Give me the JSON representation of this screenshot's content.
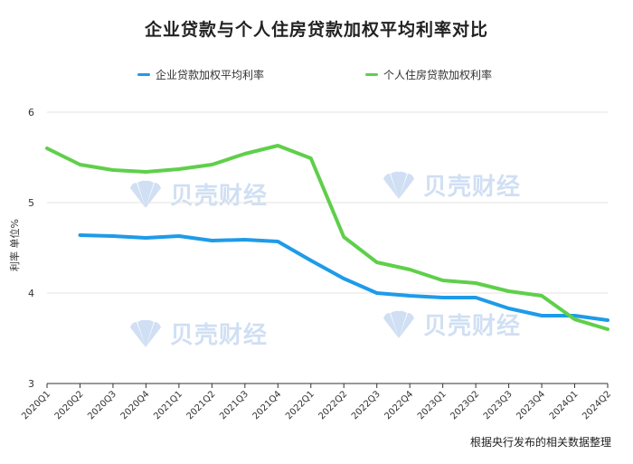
{
  "colors": {
    "corporate": "#1e9be8",
    "housing": "#5fcf4a",
    "grid": "#e3e3e3",
    "axis": "#333333",
    "watermark": "#5b8fd6"
  },
  "watermark_text": "贝壳财经",
  "chart_data": {
    "type": "line",
    "title": "企业贷款与个人住房贷款加权平均利率对比",
    "ylabel": "利率 单位%",
    "note": "根据央行发布的相关数据整理",
    "ylim": [
      3,
      6
    ],
    "yticks": [
      "3",
      "4",
      "5",
      "6"
    ],
    "categories": [
      "2020Q1",
      "2020Q2",
      "2020Q3",
      "2020Q4",
      "2021Q1",
      "2021Q2",
      "2021Q3",
      "2021Q4",
      "2022Q1",
      "2022Q2",
      "2022Q3",
      "2022Q4",
      "2023Q1",
      "2023Q2",
      "2023Q3",
      "2023Q4",
      "2024Q1",
      "2024Q2"
    ],
    "legend_position": "top",
    "grid": "horizontal",
    "series": [
      {
        "name": "企业贷款加权平均利率",
        "color": "#1e9be8",
        "values": [
          null,
          4.64,
          4.63,
          4.61,
          4.63,
          4.58,
          4.59,
          4.57,
          4.36,
          4.16,
          4.0,
          3.97,
          3.95,
          3.95,
          3.83,
          3.75,
          3.75,
          3.7
        ]
      },
      {
        "name": "个人住房贷款加权利率",
        "color": "#5fcf4a",
        "values": [
          5.6,
          5.42,
          5.36,
          5.34,
          5.37,
          5.42,
          5.54,
          5.63,
          5.49,
          4.62,
          4.34,
          4.26,
          4.14,
          4.11,
          4.02,
          3.97,
          3.71,
          3.6
        ]
      }
    ]
  }
}
